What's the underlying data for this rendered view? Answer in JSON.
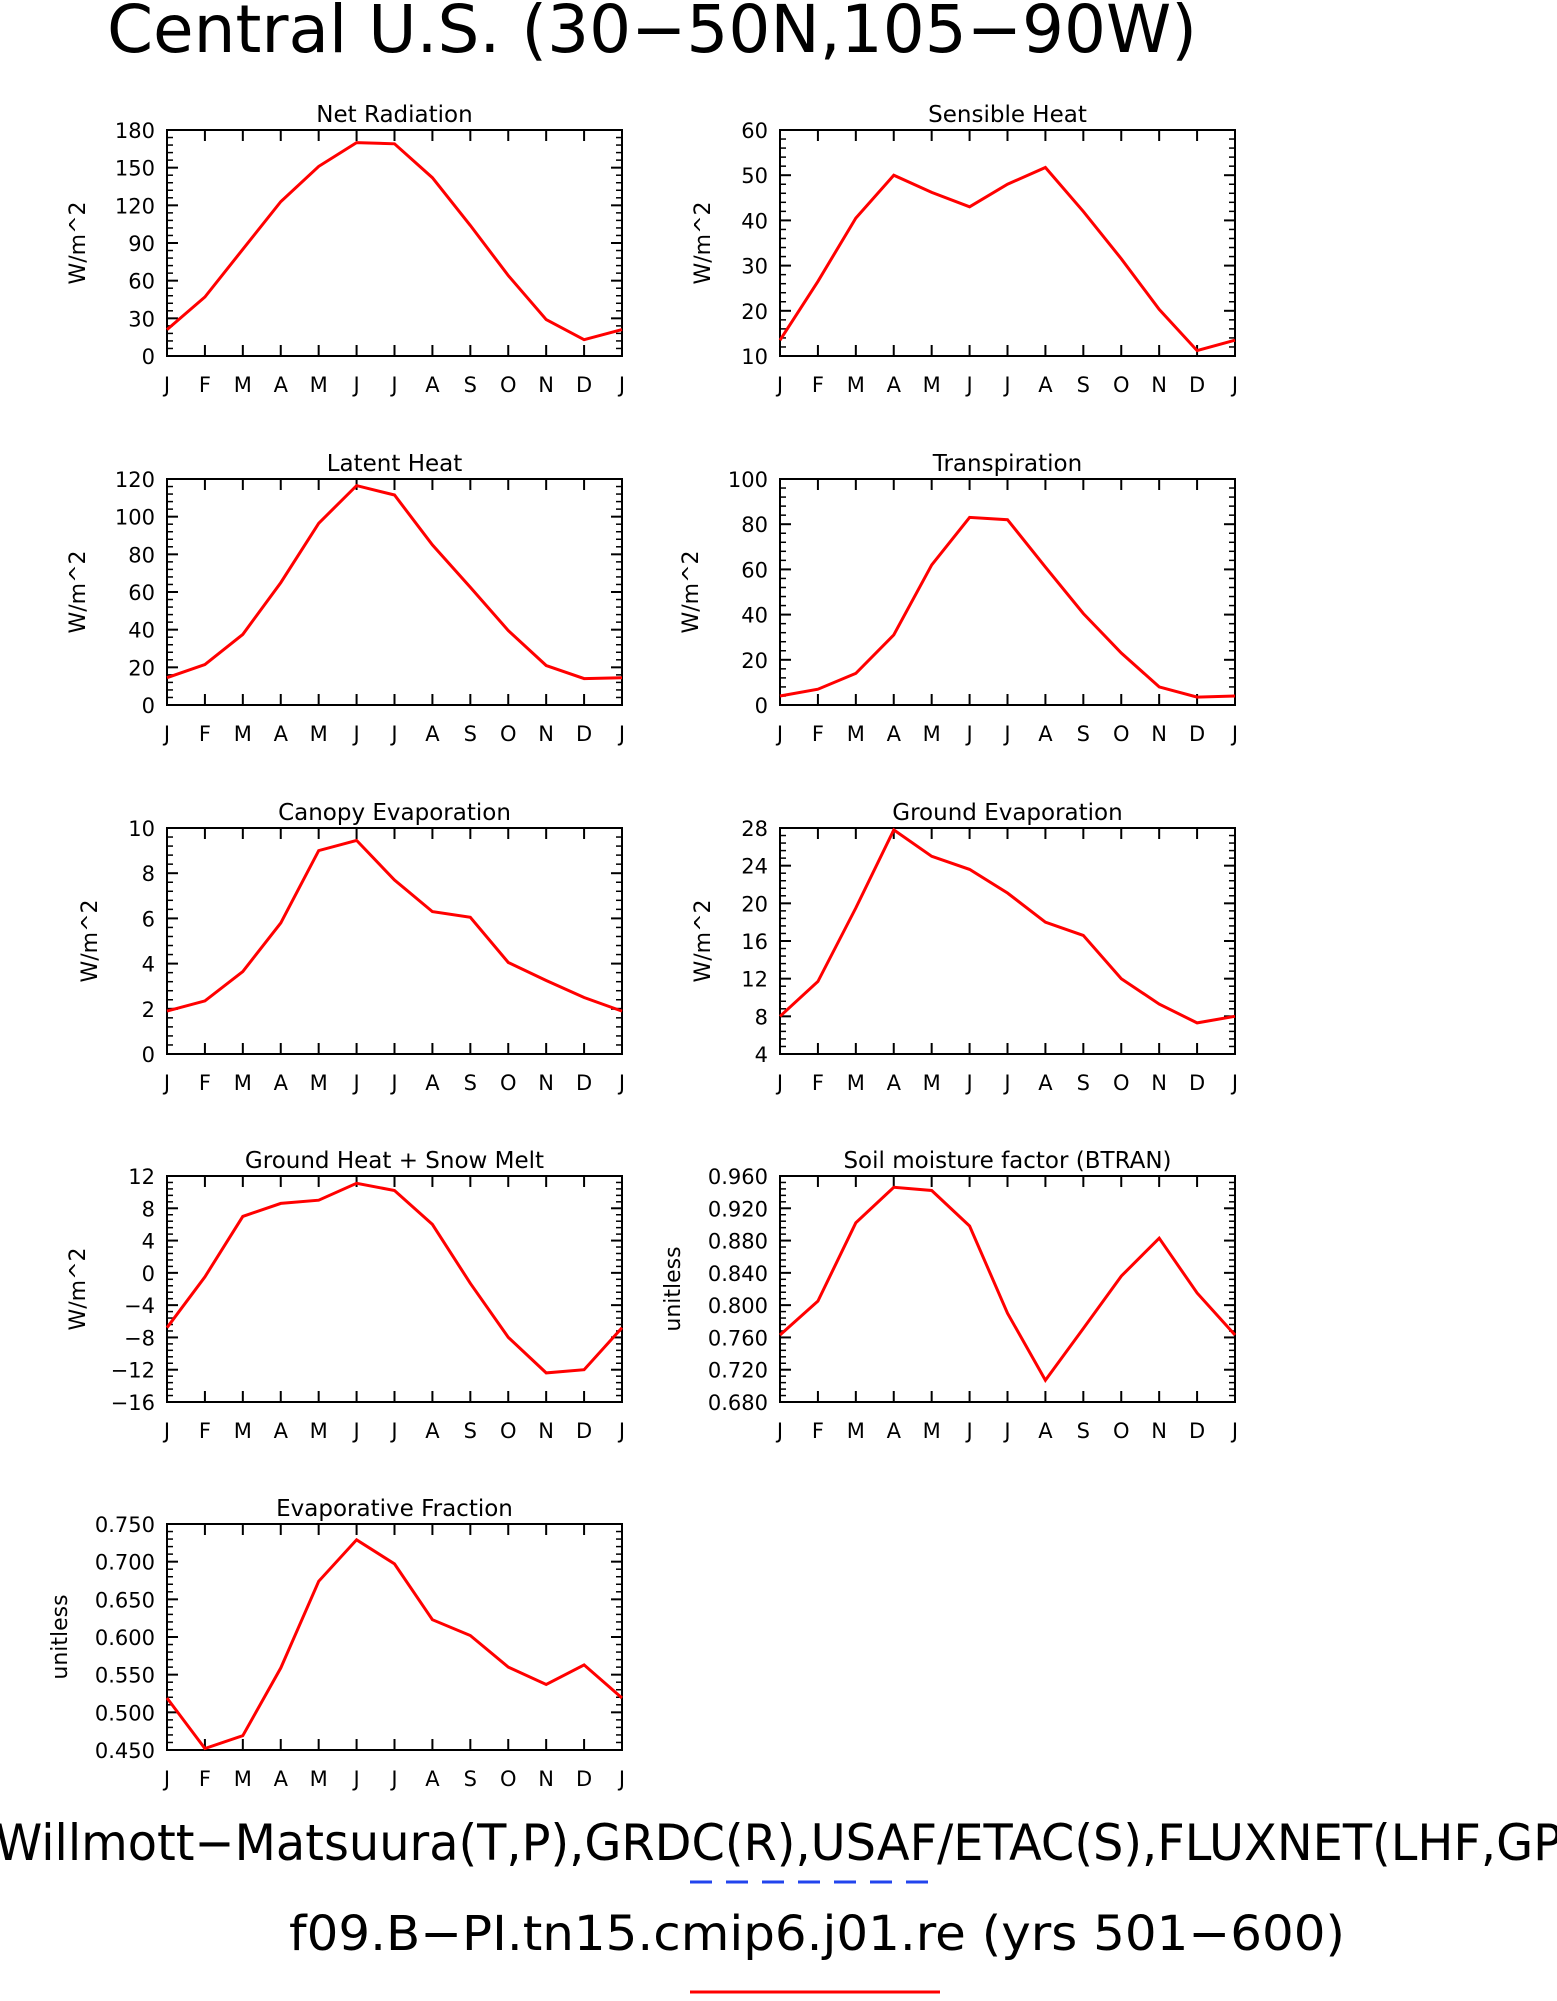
{
  "title": "Central U.S. (30−50N,105−90W)",
  "month_labels": [
    "J",
    "F",
    "M",
    "A",
    "M",
    "J",
    "J",
    "A",
    "S",
    "O",
    "N",
    "D",
    "J"
  ],
  "footer": {
    "observations": "Willmott−Matsuura(T,P),GRDC(R),USAF/ETAC(S),FLUXNET(LHF,GP",
    "case": "f09.B−PI.tn15.cmip6.j01.re (yrs 501−600)"
  },
  "colors": {
    "model_line": "#ff0000",
    "obs_line": "#2244ee",
    "axis": "#000000"
  },
  "chart_data": [
    {
      "type": "line",
      "title": "Net Radiation",
      "ylabel": "W/m^2",
      "ylim": [
        0,
        180
      ],
      "yticks": [
        0,
        30,
        60,
        90,
        120,
        150,
        180
      ],
      "ytick_labels": [
        "0",
        "30",
        "60",
        "90",
        "120",
        "150",
        "180"
      ],
      "values": [
        21,
        47,
        85,
        123,
        151,
        170,
        169,
        142,
        104,
        64,
        29,
        13,
        21
      ]
    },
    {
      "type": "line",
      "title": "Sensible Heat",
      "ylabel": "W/m^2",
      "ylim": [
        10,
        60
      ],
      "yticks": [
        10,
        20,
        30,
        40,
        50,
        60
      ],
      "ytick_labels": [
        "10",
        "20",
        "30",
        "40",
        "50",
        "60"
      ],
      "values": [
        13.5,
        26.5,
        40.5,
        50,
        46.2,
        43,
        48,
        51.7,
        42,
        31.5,
        20.3,
        11.2,
        13.5
      ]
    },
    {
      "type": "line",
      "title": "Latent Heat",
      "ylabel": "W/m^2",
      "ylim": [
        0,
        120
      ],
      "yticks": [
        0,
        20,
        40,
        60,
        80,
        100,
        120
      ],
      "ytick_labels": [
        "0",
        "20",
        "40",
        "60",
        "80",
        "100",
        "120"
      ],
      "values": [
        14.5,
        21.5,
        37.5,
        65,
        96.5,
        116.5,
        111.5,
        85,
        62.5,
        39.5,
        21,
        14,
        14.5
      ]
    },
    {
      "type": "line",
      "title": "Transpiration",
      "ylabel": "W/m^2",
      "ylim": [
        0,
        100
      ],
      "yticks": [
        0,
        20,
        40,
        60,
        80,
        100
      ],
      "ytick_labels": [
        "0",
        "20",
        "40",
        "60",
        "80",
        "100"
      ],
      "values": [
        4,
        7,
        14,
        31,
        62,
        83,
        82,
        61,
        40.5,
        23,
        8,
        3.5,
        4
      ]
    },
    {
      "type": "line",
      "title": "Canopy Evaporation",
      "ylabel": "W/m^2",
      "ylim": [
        0,
        10
      ],
      "yticks": [
        0,
        2,
        4,
        6,
        8,
        10
      ],
      "ytick_labels": [
        "0",
        "2",
        "4",
        "6",
        "8",
        "10"
      ],
      "values": [
        1.9,
        2.35,
        3.65,
        5.8,
        9,
        9.45,
        7.7,
        6.3,
        6.05,
        4.05,
        3.25,
        2.5,
        1.9
      ]
    },
    {
      "type": "line",
      "title": "Ground Evaporation",
      "ylabel": "W/m^2",
      "ylim": [
        4,
        28
      ],
      "yticks": [
        4,
        8,
        12,
        16,
        20,
        24,
        28
      ],
      "ytick_labels": [
        "4",
        "8",
        "12",
        "16",
        "20",
        "24",
        "28"
      ],
      "values": [
        8,
        11.7,
        19.5,
        27.8,
        25,
        23.6,
        21.1,
        18,
        16.6,
        12,
        9.3,
        7.3,
        8
      ]
    },
    {
      "type": "line",
      "title": "Ground Heat + Snow Melt",
      "ylabel": "W/m^2",
      "ylim": [
        -16,
        12
      ],
      "yticks": [
        -16,
        -12,
        -8,
        -4,
        0,
        4,
        8,
        12
      ],
      "ytick_labels": [
        "−16",
        "−12",
        "−8",
        "−4",
        "0",
        "4",
        "8",
        "12"
      ],
      "values": [
        -6.8,
        -0.5,
        7,
        8.6,
        9,
        11.1,
        10.2,
        6,
        -1.3,
        -8,
        -12.4,
        -12,
        -6.8
      ]
    },
    {
      "type": "line",
      "title": "Soil moisture factor (BTRAN)",
      "ylabel": "unitless",
      "ylim": [
        0.68,
        0.96
      ],
      "yticks": [
        0.68,
        0.72,
        0.76,
        0.8,
        0.84,
        0.88,
        0.92,
        0.96
      ],
      "ytick_labels": [
        "0.680",
        "0.720",
        "0.760",
        "0.800",
        "0.840",
        "0.880",
        "0.920",
        "0.960"
      ],
      "values": [
        0.763,
        0.805,
        0.902,
        0.946,
        0.942,
        0.898,
        0.79,
        0.707,
        0.771,
        0.836,
        0.883,
        0.815,
        0.763
      ]
    },
    {
      "type": "line",
      "title": "Evaporative Fraction",
      "ylabel": "unitless",
      "ylim": [
        0.45,
        0.75
      ],
      "yticks": [
        0.45,
        0.5,
        0.55,
        0.6,
        0.65,
        0.7,
        0.75
      ],
      "ytick_labels": [
        "0.450",
        "0.500",
        "0.550",
        "0.600",
        "0.650",
        "0.700",
        "0.750"
      ],
      "values": [
        0.519,
        0.452,
        0.469,
        0.559,
        0.674,
        0.729,
        0.697,
        0.623,
        0.602,
        0.56,
        0.537,
        0.563,
        0.519
      ]
    }
  ]
}
